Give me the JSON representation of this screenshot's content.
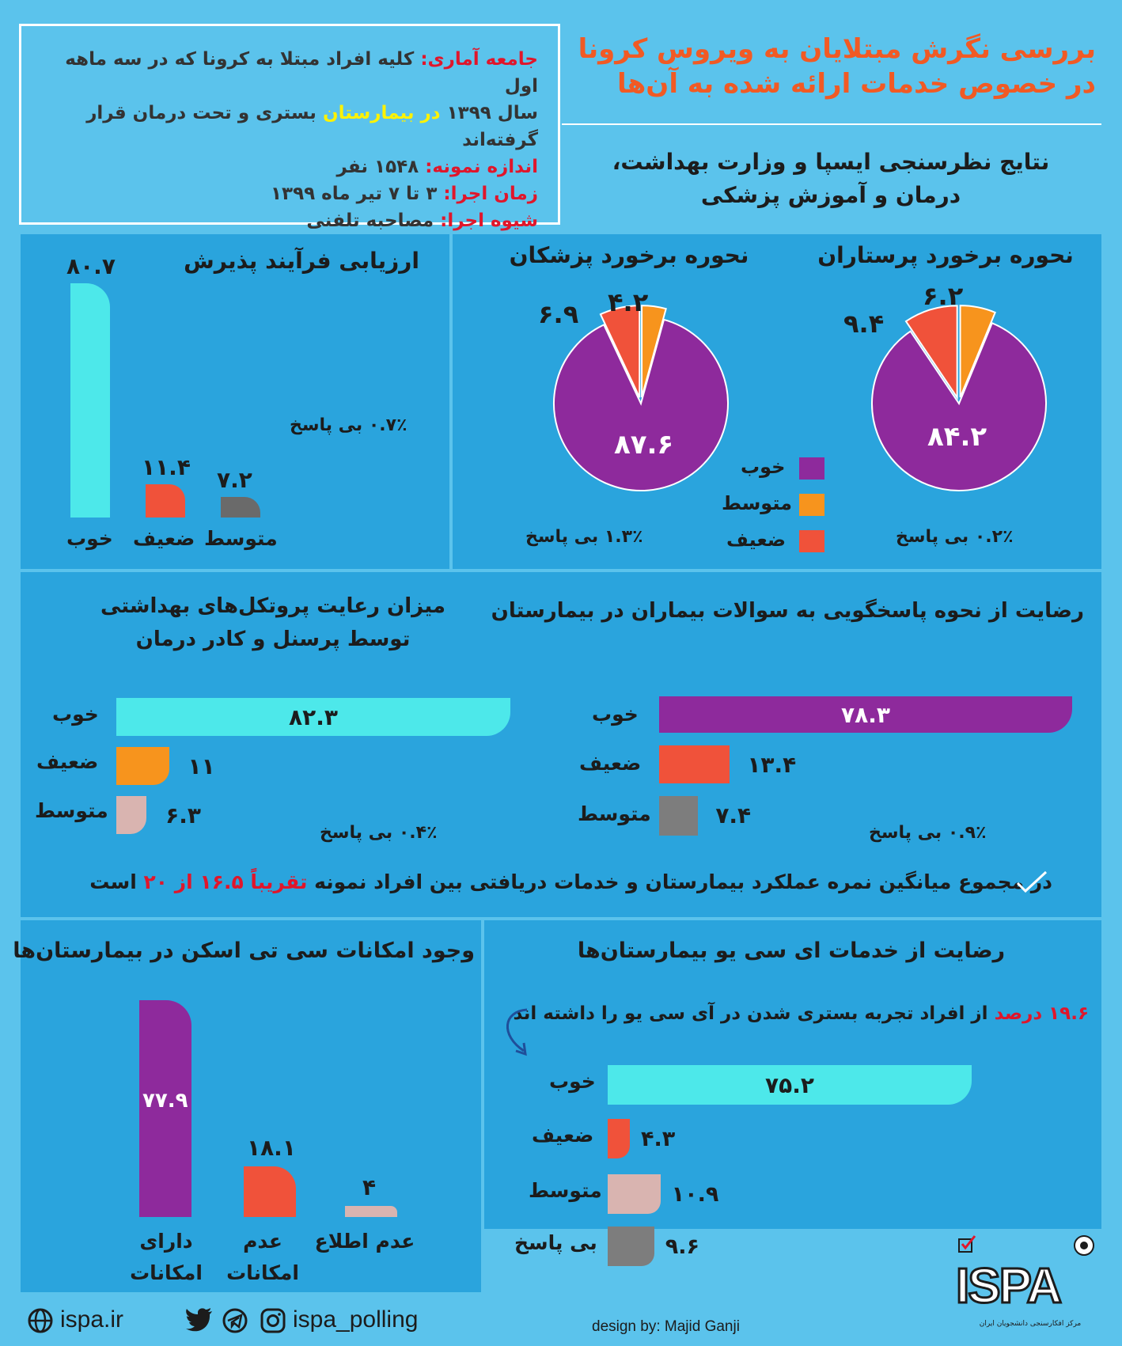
{
  "header": {
    "title_line1": "بررسی نگرش مبتلایان به ویروس کرونا",
    "title_line2": "در خصوص خدمات ارائه شده به آن‌ها",
    "subtitle_line1": "نتایج نظرسنجی ایسپا و وزارت بهداشت،",
    "subtitle_line2": "درمان و آموزش پزشکی"
  },
  "info": {
    "population_label": "جامعه آماری:",
    "population_text1": "کلیه افراد مبتلا به کرونا که در سه ماهه اول",
    "population_text2a": "سال ۱۳۹۹",
    "population_text2b": "در بیمارستان",
    "population_text2c": "بستری و تحت درمان  قرار گرفته‌اند",
    "sample_label": "اندازه نمونه:",
    "sample_value": "۱۵۴۸  نفر",
    "time_label": "زمان اجرا:",
    "time_value": "۳ تا ۷ تیر ماه ۱۳۹۹",
    "method_label": "شیوه اجرا:",
    "method_value": "مصاحبه تلفنی"
  },
  "admission": {
    "title": "ارزیابی فرآیند پذیرش",
    "no_answer": "۰.۷٪  بی پاسخ",
    "bars": [
      {
        "label": "خوب",
        "value_text": "۸۰.۷",
        "value": 80.7,
        "color": "#4de8ea"
      },
      {
        "label": "ضعیف",
        "value_text": "۱۱.۴",
        "value": 11.4,
        "color": "#f0523a"
      },
      {
        "label": "متوسط",
        "value_text": "۷.۲",
        "value": 7.2,
        "color": "#6a6a6a"
      }
    ]
  },
  "doctors": {
    "title": "نحوره برخورد پزشکان",
    "good_text": "۸۷.۶",
    "avg_text": "۴.۲",
    "weak_text": "۶.۹",
    "good": 87.6,
    "average": 4.2,
    "weak": 6.9,
    "no_answer": "۱.۳٪  بی پاسخ"
  },
  "nurses": {
    "title": "نحوره برخورد پرستاران",
    "good_text": "۸۴.۲",
    "avg_text": "۶.۲",
    "weak_text": "۹.۴",
    "good": 84.2,
    "average": 6.2,
    "weak": 9.4,
    "no_answer": "۰.۲٪  بی پاسخ"
  },
  "pie_legend": {
    "good": "خوب",
    "average": "متوسط",
    "weak": "ضعیف",
    "good_color": "#8e2a9c",
    "average_color": "#f7941d",
    "weak_color": "#f0523a"
  },
  "protocols": {
    "title_line1": "میزان رعایت پروتکل‌های بهداشتی",
    "title_line2": "توسط پرسنل و کادر درمان",
    "no_answer": "۰.۴٪  بی پاسخ",
    "bars": [
      {
        "label": "خوب",
        "value_text": "۸۲.۳",
        "value": 82.3,
        "color": "#4de8ea"
      },
      {
        "label": "ضعیف",
        "value_text": "۱۱",
        "value": 11,
        "color": "#f7941d"
      },
      {
        "label": "متوسط",
        "value_text": "۶.۳",
        "value": 6.3,
        "color": "#d9b4b0"
      }
    ]
  },
  "answers": {
    "title": "رضایت از نحوه پاسخگویی به سوالات بیماران در بیمارستان",
    "no_answer": "۰.۹٪  بی پاسخ",
    "bars": [
      {
        "label": "خوب",
        "value_text": "۷۸.۳",
        "value": 78.3,
        "color": "#8e2a9c"
      },
      {
        "label": "ضعیف",
        "value_text": "۱۳.۴",
        "value": 13.4,
        "color": "#f0523a"
      },
      {
        "label": "متوسط",
        "value_text": "۷.۴",
        "value": 7.4,
        "color": "#7d7d7d"
      }
    ]
  },
  "summary": {
    "text1": "در مجموع میانگین نمره عملکرد بیمارستان و خدمات دریافتی بین افراد نمونه",
    "text2": "تقریباً  ۱۶.۵ از ۲۰",
    "text3": "است"
  },
  "ct_scan": {
    "title": "وجود امکانات سی تی اسکن در بیمارستان‌ها",
    "bars": [
      {
        "label1": "دارای",
        "label2": "امکانات",
        "value_text": "۷۷.۹",
        "value": 77.9,
        "color": "#8e2a9c"
      },
      {
        "label1": "عدم",
        "label2": "امکانات",
        "value_text": "۱۸.۱",
        "value": 18.1,
        "color": "#f0523a"
      },
      {
        "label1": "عدم اطلاع",
        "label2": "",
        "value_text": "۴",
        "value": 4,
        "color": "#d9b4b0"
      }
    ]
  },
  "icu": {
    "title": "رضایت از خدمات ای سی یو بیمارستان‌ها",
    "note_highlight": "۱۹.۶ درصد",
    "note_rest": "از افراد تجربه بستری شدن در آی سی یو را داشته اند",
    "bars": [
      {
        "label": "خوب",
        "value_text": "۷۵.۲",
        "value": 75.2,
        "color": "#4de8ea"
      },
      {
        "label": "ضعیف",
        "value_text": "۴.۳",
        "value": 4.3,
        "color": "#f0523a"
      },
      {
        "label": "متوسط",
        "value_text": "۱۰.۹",
        "value": 10.9,
        "color": "#d9b4b0"
      },
      {
        "label": "بی پاسخ",
        "value_text": "۹.۶",
        "value": 9.6,
        "color": "#7d7d7d"
      }
    ]
  },
  "footer": {
    "website": "ispa.ir",
    "social": "ispa_polling",
    "credit": "design by: Majid Ganji",
    "logo_text": "ISPA",
    "logo_caption": "مرکز افکارسنجی دانشجویان ایران"
  }
}
